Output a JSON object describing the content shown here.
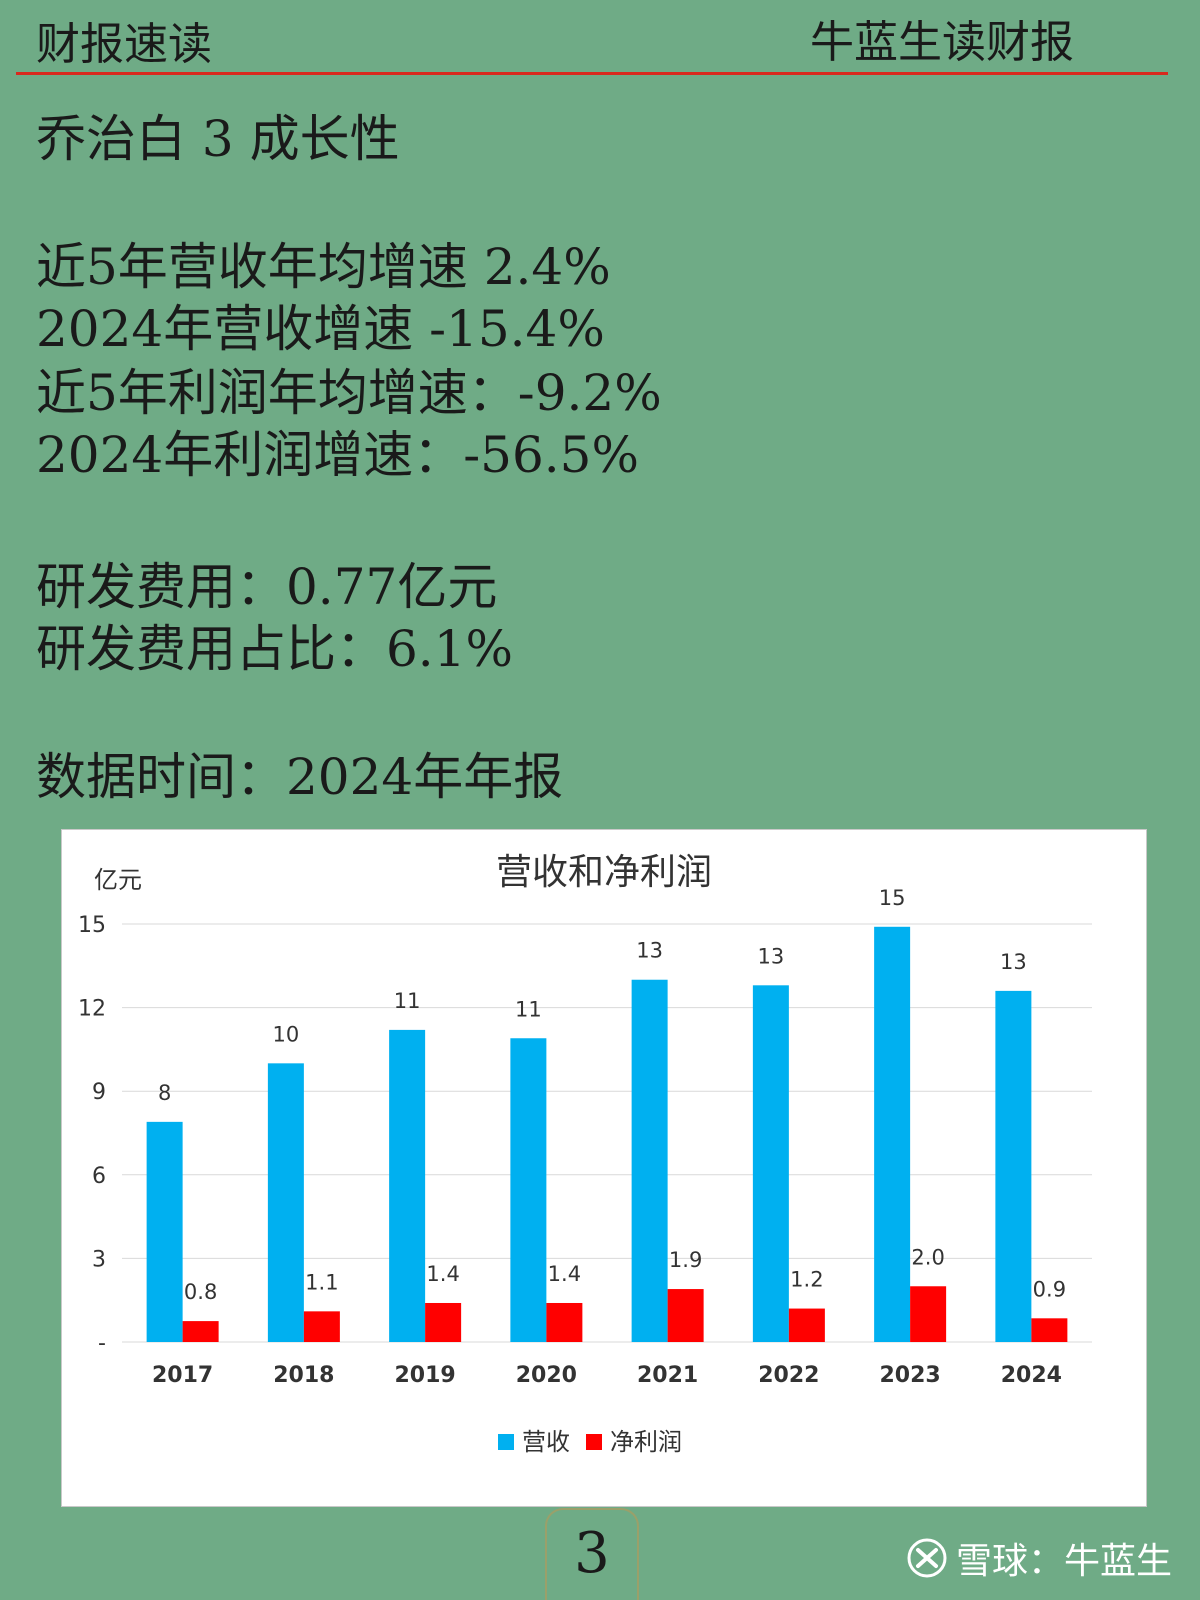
{
  "header": {
    "left": "财报速读",
    "right": "牛蓝生读财报"
  },
  "content": {
    "title": "乔治白 3 成长性",
    "growth": [
      "近5年营收年均增速 2.4%",
      "2024年营收增速 -15.4%",
      "近5年利润年均增速：-9.2%",
      "2024年利润增速：-56.5%"
    ],
    "rd": [
      "研发费用：0.77亿元",
      "研发费用占比：6.1%"
    ],
    "data_time": "数据时间：2024年年报"
  },
  "chart_data": {
    "type": "bar",
    "title": "营收和净利润",
    "ylabel": "亿元",
    "categories": [
      "2017",
      "2018",
      "2019",
      "2020",
      "2021",
      "2022",
      "2023",
      "2024"
    ],
    "series": [
      {
        "name": "营收",
        "color": "#00b0f0",
        "values": [
          7.9,
          10.0,
          11.2,
          10.9,
          13.0,
          12.8,
          14.9,
          12.6
        ],
        "labels": [
          "8",
          "10",
          "11",
          "11",
          "13",
          "13",
          "15",
          "13"
        ]
      },
      {
        "name": "净利润",
        "color": "#ff0000",
        "values": [
          0.75,
          1.1,
          1.4,
          1.4,
          1.9,
          1.2,
          2.0,
          0.85
        ],
        "labels": [
          "0.8",
          "1.1",
          "1.4",
          "1.4",
          "1.9",
          "1.2",
          "2.0",
          "0.9"
        ]
      }
    ],
    "yticks": [
      "-",
      "3",
      "6",
      "9",
      "12",
      "15"
    ],
    "ylim": [
      0,
      15
    ],
    "grid": true,
    "legend": "bottom"
  },
  "page_number": "3",
  "watermark": "雪球：牛蓝生"
}
